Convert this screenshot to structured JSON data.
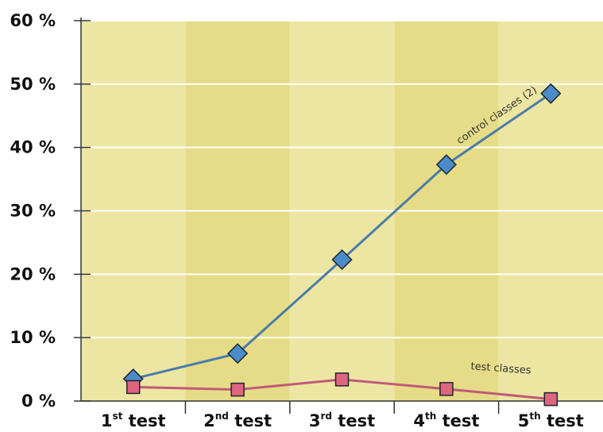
{
  "chart_data": {
    "type": "line",
    "categories": [
      {
        "num": "1",
        "sup": "st",
        "word": "test"
      },
      {
        "num": "2",
        "sup": "nd",
        "word": "test"
      },
      {
        "num": "3",
        "sup": "rd",
        "word": "test"
      },
      {
        "num": "4",
        "sup": "th",
        "word": "test"
      },
      {
        "num": "5",
        "sup": "th",
        "word": "test"
      }
    ],
    "ylim": [
      0,
      60
    ],
    "yticks": [
      0,
      10,
      20,
      30,
      40,
      50,
      60
    ],
    "ytick_labels": [
      "0 %",
      "10 %",
      "20 %",
      "30 %",
      "40 %",
      "50 %",
      "60 %"
    ],
    "grid": "horizontal",
    "band_colors": [
      "#ede6a2",
      "#e6dc88"
    ],
    "series": [
      {
        "name": "control classes (2)",
        "values": [
          3.5,
          7.5,
          22.3,
          37.3,
          48.5
        ],
        "line_color": "#4a7ca8",
        "marker": "diamond",
        "marker_color": "#4a8cc8"
      },
      {
        "name": "test classes",
        "values": [
          2.2,
          1.8,
          3.4,
          1.9,
          0.3
        ],
        "line_color": "#c05a78",
        "marker": "square",
        "marker_color": "#de6680"
      }
    ]
  }
}
